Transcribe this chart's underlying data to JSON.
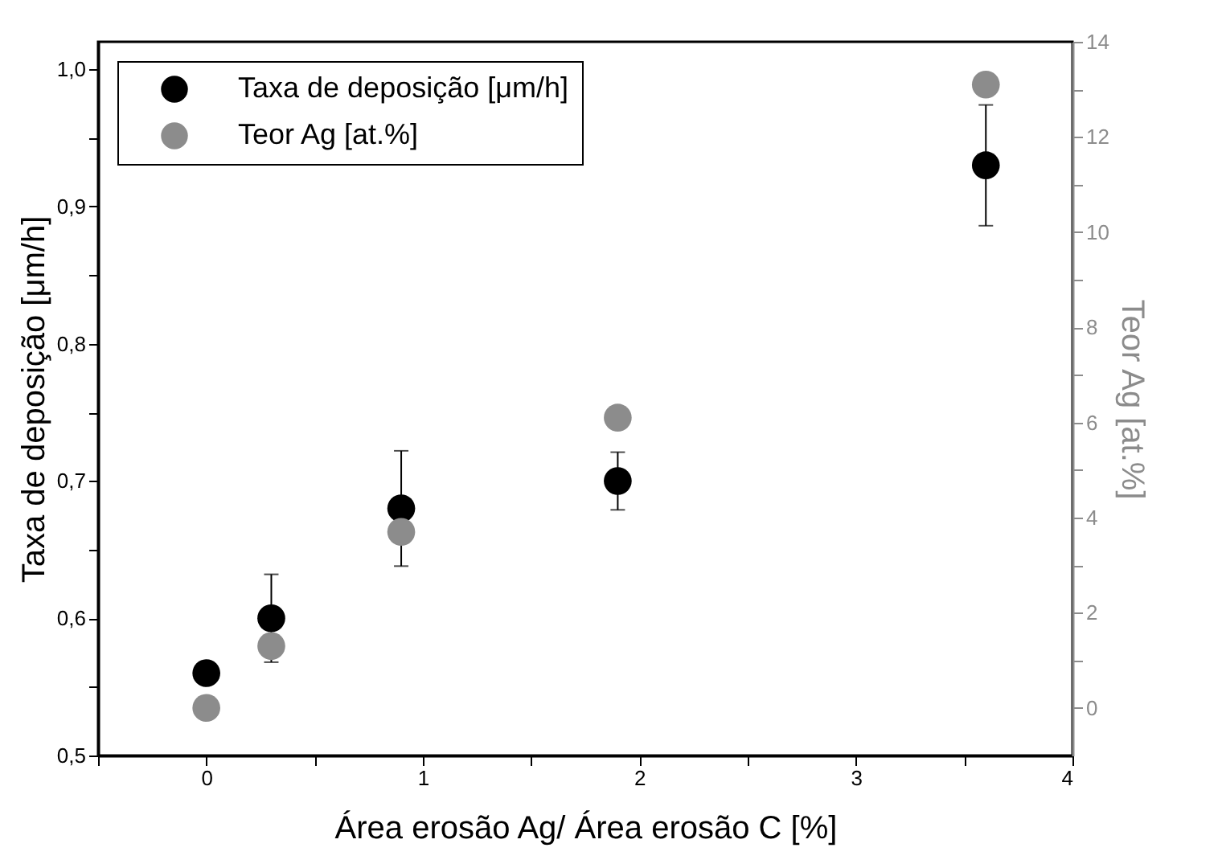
{
  "chart_data": {
    "type": "scatter",
    "xlabel": "Área erosão Ag/ Área erosão C [%]",
    "ylabel": "Taxa de deposição [μm/h]",
    "y2label": "Teor Ag [at.%]",
    "x": [
      0,
      0.3,
      0.9,
      1.9,
      3.6
    ],
    "series": [
      {
        "name": "Taxa de deposição [μm/h]",
        "color": "#000000",
        "values": [
          0.56,
          0.6,
          0.68,
          0.7,
          0.93
        ],
        "errors": [
          null,
          0.032,
          0.042,
          0.021,
          0.044
        ]
      },
      {
        "name": "Teor Ag [at.%]",
        "color": "#8c8c8c",
        "axis": "y2",
        "values": [
          0,
          1.3,
          3.7,
          6.1,
          13.1
        ]
      }
    ],
    "xlim": [
      -0.5,
      4
    ],
    "xticks": [
      {
        "value": -0.5,
        "label": null
      },
      0,
      {
        "value": 0.5,
        "label": null
      },
      1,
      {
        "value": 1.5,
        "label": null
      },
      2,
      {
        "value": 2.5,
        "label": null
      },
      3,
      {
        "value": 3.5,
        "label": null
      },
      4
    ],
    "ylim": [
      0.5,
      1.02
    ],
    "yticks": [
      {
        "value": 0.5,
        "label": "0,5"
      },
      {
        "value": 0.55,
        "label": null
      },
      {
        "value": 0.6,
        "label": "0,6"
      },
      {
        "value": 0.65,
        "label": null
      },
      {
        "value": 0.7,
        "label": "0,7"
      },
      {
        "value": 0.75,
        "label": null
      },
      {
        "value": 0.8,
        "label": "0,8"
      },
      {
        "value": 0.85,
        "label": null
      },
      {
        "value": 0.9,
        "label": "0,9"
      },
      {
        "value": 0.95,
        "label": null
      },
      {
        "value": 1.0,
        "label": "1,0"
      }
    ],
    "y2lim": [
      -1,
      14
    ],
    "y2ticks": [
      0,
      {
        "value": 1,
        "label": null
      },
      2,
      {
        "value": 3,
        "label": null
      },
      4,
      {
        "value": 5,
        "label": null
      },
      6,
      {
        "value": 7,
        "label": null
      },
      8,
      {
        "value": 9,
        "label": null
      },
      10,
      {
        "value": 11,
        "label": null
      },
      12,
      {
        "value": 13,
        "label": null
      },
      14
    ],
    "legend": "top left",
    "marker": "circle"
  }
}
